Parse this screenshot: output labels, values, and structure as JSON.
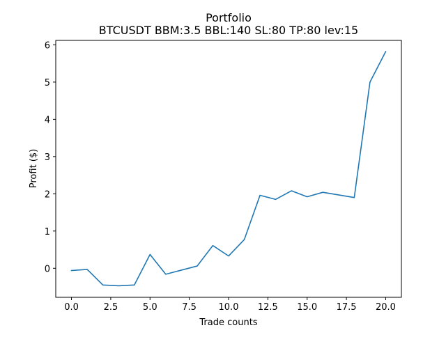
{
  "chart_data": {
    "type": "line",
    "title": "Portfolio",
    "subtitle": "BTCUSDT BBM:3.5 BBL:140 SL:80 TP:80 lev:15",
    "xlabel": "Trade counts",
    "ylabel": "Profit ($)",
    "xlim": [
      -1.0,
      21.0
    ],
    "ylim": [
      -0.78,
      6.12
    ],
    "xticks": [
      0,
      2.5,
      5,
      7.5,
      10,
      12.5,
      15,
      17.5,
      20
    ],
    "xtick_labels": [
      "0.0",
      "2.5",
      "5.0",
      "7.5",
      "10.0",
      "12.5",
      "15.0",
      "17.5",
      "20.0"
    ],
    "yticks": [
      0,
      1,
      2,
      3,
      4,
      5,
      6
    ],
    "ytick_labels": [
      "0",
      "1",
      "2",
      "3",
      "4",
      "5",
      "6"
    ],
    "grid": false,
    "legend": "none",
    "line_color": "#1f77b4",
    "series": [
      {
        "x": [
          0,
          1,
          2,
          3,
          4,
          5,
          6,
          7,
          8,
          9,
          10,
          11,
          12,
          13,
          14,
          15,
          16,
          17,
          18,
          19,
          20
        ],
        "values": [
          -0.06,
          -0.03,
          -0.45,
          -0.47,
          -0.45,
          0.37,
          -0.16,
          -0.05,
          0.06,
          0.61,
          0.33,
          0.77,
          1.96,
          1.85,
          2.08,
          1.92,
          2.04,
          1.97,
          1.9,
          5.0,
          5.82
        ]
      }
    ]
  }
}
